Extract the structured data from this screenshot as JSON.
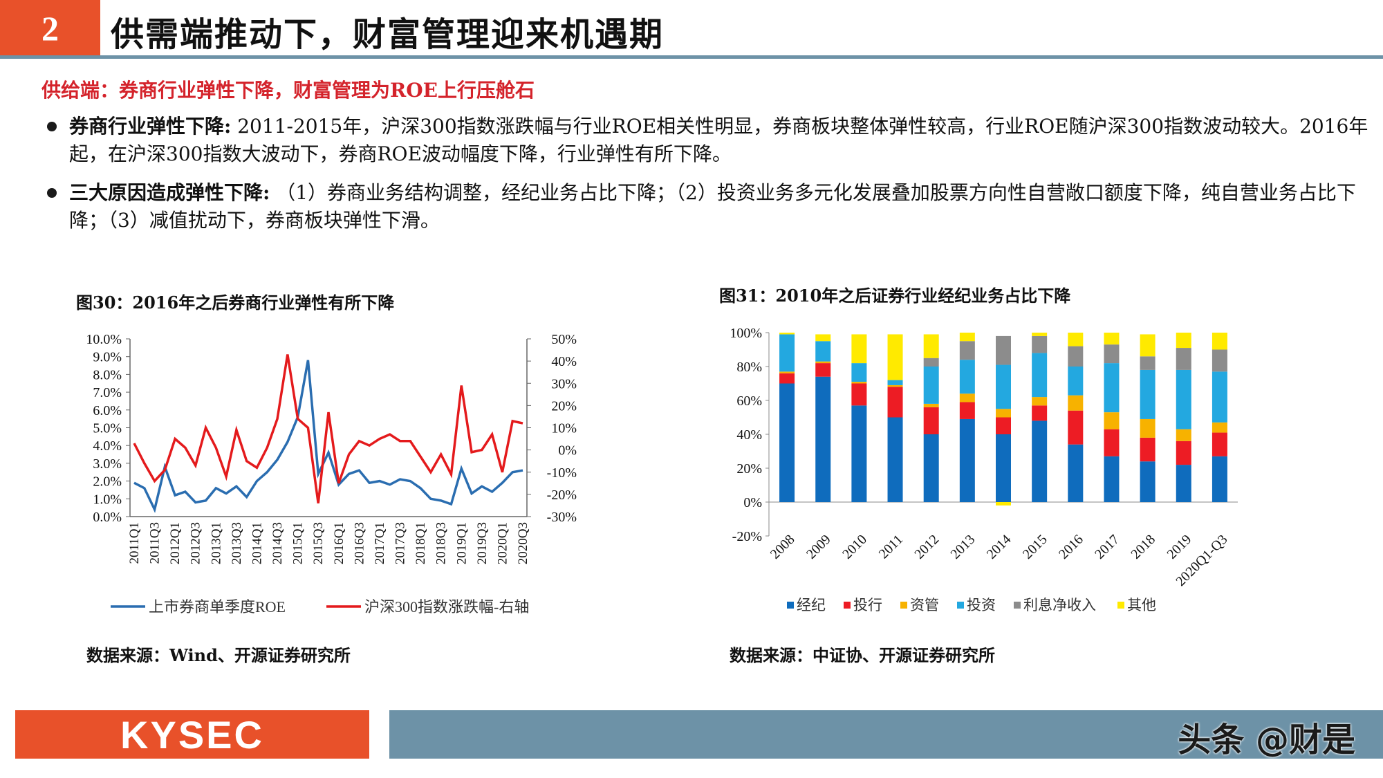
{
  "header": {
    "section_number": "2",
    "title": "供需端推动下，财富管理迎来机遇期"
  },
  "supply_heading": "供给端：券商行业弹性下降，财富管理为ROE上行压舱石",
  "bullets": [
    {
      "bold": "券商行业弹性下降:",
      "text": " 2011-2015年，沪深300指数涨跌幅与行业ROE相关性明显，券商板块整体弹性较高，行业ROE随沪深300指数波动较大。2016年起，在沪深300指数大波动下，券商ROE波动幅度下降，行业弹性有所下降。"
    },
    {
      "bold": "三大原因造成弹性下降:",
      "text": " （1）券商业务结构调整，经纪业务占比下降；（2）投资业务多元化发展叠加股票方向性自营敞口额度下降，纯自营业务占比下降；（3）减值扰动下，券商板块弹性下滑。"
    }
  ],
  "chart30": {
    "title": "图30：2016年之后券商行业弹性有所下降",
    "source": "数据来源：Wind、开源证券研究所"
  },
  "chart31": {
    "title": "图31：2010年之后证券行业经纪业务占比下降",
    "source": "数据来源：中证协、开源证券研究所"
  },
  "footer": {
    "logo": "KYSEC",
    "watermark": "头条 @财是"
  },
  "colors": {
    "accent": "#e8512a",
    "bar": "#6d92a7",
    "red": "#d4232b",
    "roe_line": "#2a6db0",
    "hs300_line": "#e41a1c",
    "jingji": "#0f6cbd",
    "touhang": "#ed1c24",
    "ziguan": "#f7b200",
    "touzi": "#23a8e0",
    "lixi": "#8c8c8c",
    "qita": "#ffea00"
  },
  "chart_data": [
    {
      "type": "line",
      "x": [
        "2011Q1",
        "2011Q2",
        "2011Q3",
        "2011Q4",
        "2012Q1",
        "2012Q2",
        "2012Q3",
        "2012Q4",
        "2013Q1",
        "2013Q2",
        "2013Q3",
        "2013Q4",
        "2014Q1",
        "2014Q2",
        "2014Q3",
        "2014Q4",
        "2015Q1",
        "2015Q2",
        "2015Q3",
        "2015Q4",
        "2016Q1",
        "2016Q2",
        "2016Q3",
        "2016Q4",
        "2017Q1",
        "2017Q2",
        "2017Q3",
        "2017Q4",
        "2018Q1",
        "2018Q2",
        "2018Q3",
        "2018Q4",
        "2019Q1",
        "2019Q2",
        "2019Q3",
        "2019Q4",
        "2020Q1",
        "2020Q2",
        "2020Q3"
      ],
      "x_tick_labels": [
        "2011Q1",
        "2011Q3",
        "2012Q1",
        "2012Q3",
        "2013Q1",
        "2013Q3",
        "2014Q1",
        "2014Q3",
        "2015Q1",
        "2015Q3",
        "2016Q1",
        "2016Q3",
        "2017Q1",
        "2017Q3",
        "2018Q1",
        "2018Q3",
        "2019Q1",
        "2019Q3",
        "2020Q1",
        "2020Q3"
      ],
      "y_left_ticks": [
        "0.0%",
        "1.0%",
        "2.0%",
        "3.0%",
        "4.0%",
        "5.0%",
        "6.0%",
        "7.0%",
        "8.0%",
        "9.0%",
        "10.0%"
      ],
      "y_right_ticks": [
        "-30%",
        "-20%",
        "-10%",
        "0%",
        "10%",
        "20%",
        "30%",
        "40%",
        "50%"
      ],
      "ylim_left": [
        0,
        10
      ],
      "ylim_right": [
        -30,
        50
      ],
      "series": [
        {
          "name": "上市券商单季度ROE",
          "axis": "left",
          "unit": "%",
          "values": [
            1.9,
            1.6,
            0.4,
            2.8,
            1.2,
            1.4,
            0.8,
            0.9,
            1.6,
            1.3,
            1.7,
            1.1,
            2.0,
            2.5,
            3.2,
            4.2,
            5.6,
            8.8,
            2.4,
            3.6,
            1.8,
            2.4,
            2.6,
            1.9,
            2.0,
            1.8,
            2.1,
            2.0,
            1.6,
            1.0,
            0.9,
            0.7,
            2.7,
            1.3,
            1.7,
            1.4,
            1.9,
            2.5,
            2.6
          ]
        },
        {
          "name": "沪深300指数涨跌幅-右轴",
          "axis": "right",
          "unit": "%",
          "values": [
            3,
            -6,
            -14,
            -9,
            5,
            1,
            -7,
            10,
            1,
            -12,
            9,
            -5,
            -8,
            1,
            14,
            43,
            14,
            10,
            -24,
            17,
            -15,
            -2,
            4,
            2,
            5,
            7,
            4,
            4,
            -3,
            -10,
            -2,
            -11,
            29,
            -1,
            0,
            7,
            -10,
            13,
            12
          ]
        }
      ]
    },
    {
      "type": "bar",
      "stacked": true,
      "categories": [
        "2008",
        "2009",
        "2010",
        "2011",
        "2012",
        "2013",
        "2014",
        "2015",
        "2016",
        "2017",
        "2018",
        "2019",
        "2020Q1-Q3"
      ],
      "y_ticks": [
        "-20%",
        "0%",
        "20%",
        "40%",
        "60%",
        "80%",
        "100%"
      ],
      "ylim": [
        -20,
        100
      ],
      "series": [
        {
          "name": "经纪",
          "values": [
            70,
            74,
            57,
            50,
            40,
            49,
            40,
            48,
            34,
            27,
            24,
            22,
            27
          ]
        },
        {
          "name": "投行",
          "values": [
            6,
            8,
            13,
            18,
            16,
            10,
            10,
            9,
            20,
            16,
            14,
            14,
            14
          ]
        },
        {
          "name": "资管",
          "values": [
            1,
            1,
            1,
            1,
            2,
            5,
            5,
            5,
            9,
            10,
            11,
            7,
            6
          ]
        },
        {
          "name": "投资",
          "values": [
            22,
            12,
            11,
            3,
            22,
            20,
            26,
            26,
            17,
            29,
            29,
            35,
            30
          ]
        },
        {
          "name": "利息净收入",
          "values": [
            0,
            0,
            0,
            0,
            5,
            11,
            17,
            10,
            12,
            11,
            8,
            13,
            13
          ]
        },
        {
          "name": "其他",
          "values": [
            1,
            4,
            17,
            27,
            14,
            5,
            -2,
            2,
            8,
            7,
            13,
            9,
            10
          ]
        }
      ]
    }
  ]
}
